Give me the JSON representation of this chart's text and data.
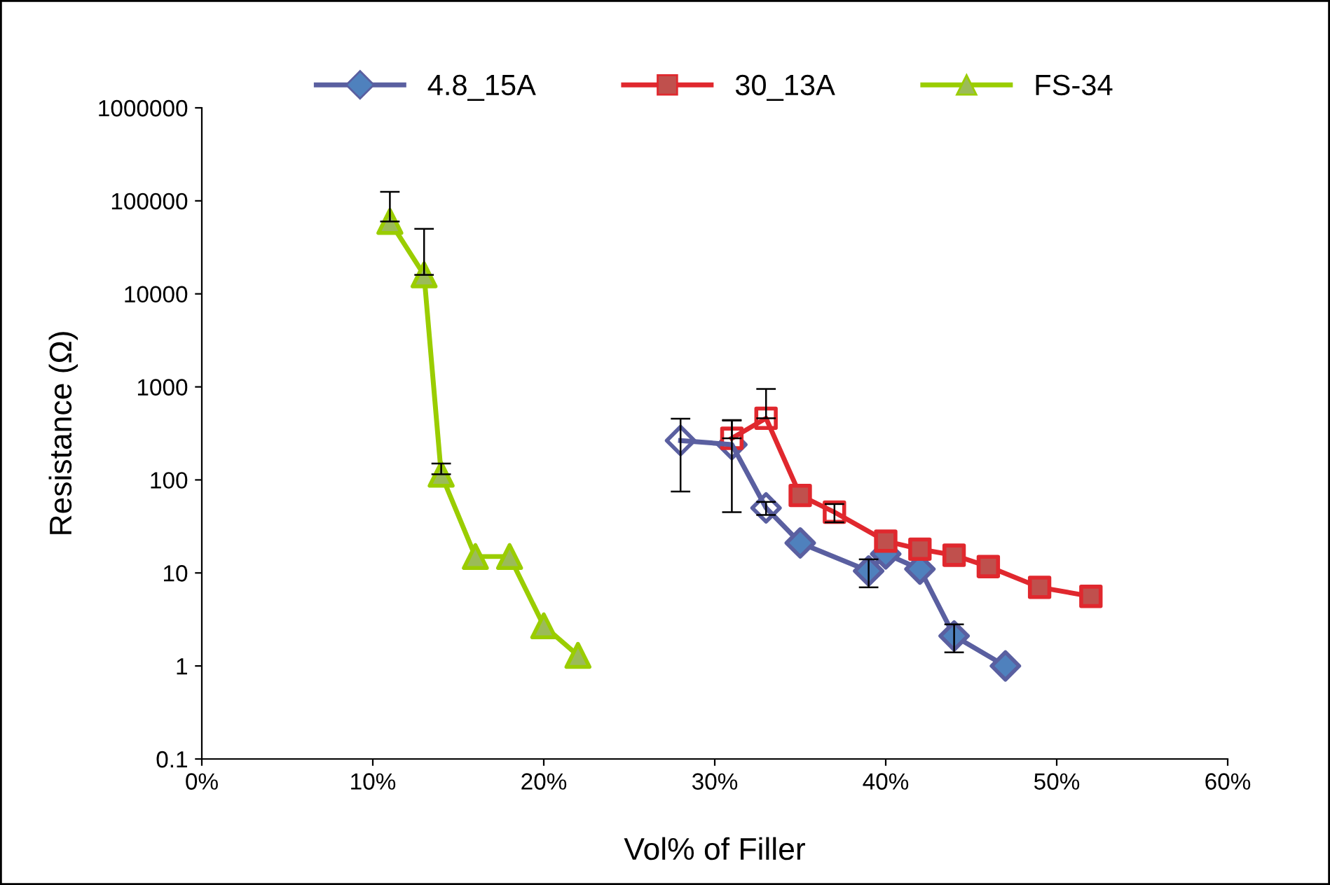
{
  "chart_data": {
    "type": "line",
    "xlabel": "Vol% of Filler",
    "ylabel": "Resistance (Ω)",
    "log": "y",
    "legend": "top",
    "grid": false,
    "xlim": [
      0,
      60
    ],
    "xticks": [
      {
        "value": 0,
        "label": "0%"
      },
      {
        "value": 10,
        "label": "10%"
      },
      {
        "value": 20,
        "label": "20%"
      },
      {
        "value": 30,
        "label": "30%"
      },
      {
        "value": 40,
        "label": "40%"
      },
      {
        "value": 50,
        "label": "50%"
      },
      {
        "value": 60,
        "label": "60%"
      }
    ],
    "ylim": [
      0.1,
      1000000
    ],
    "yticks": [
      {
        "value": 0.1,
        "label": "0.1"
      },
      1,
      10,
      100,
      1000,
      10000,
      100000,
      1000000
    ],
    "series": [
      {
        "name": "4.8_15A",
        "color": "#5a5fa0",
        "marker": "diamond",
        "x": [
          28,
          31,
          33,
          35,
          39,
          40,
          42,
          44,
          47
        ],
        "values": [
          265,
          240,
          50,
          21,
          10.5,
          16,
          11,
          2.1,
          1
        ],
        "colors": [
          "#ffffff",
          "#ffffff",
          "#ffffff",
          "#4f81bd",
          "#4f81bd",
          "#4f81bd",
          "#4f81bd",
          "#4f81bd",
          "#4f81bd"
        ],
        "errors": [
          190,
          195,
          8,
          null,
          3.5,
          null,
          null,
          0.7,
          null
        ]
      },
      {
        "name": "30_13A",
        "color": "#e0282e",
        "marker": "square",
        "x": [
          31,
          33,
          35,
          37,
          40,
          42,
          44,
          46,
          49,
          52
        ],
        "values": [
          280,
          460,
          68,
          45,
          22,
          18,
          15.5,
          11.7,
          7,
          5.6
        ],
        "colors": [
          "#ffffff",
          "#ffffff",
          "#c0504d",
          "#ffffff",
          "#c0504d",
          "#c0504d",
          "#c0504d",
          "#c0504d",
          "#c0504d",
          "#c0504d"
        ],
        "errors": [
          [
            280,
            440
          ],
          [
            460,
            950
          ],
          null,
          10,
          null,
          null,
          null,
          null,
          null,
          null
        ]
      },
      {
        "name": "FS-34",
        "color": "#9acd00",
        "marker": "triangle",
        "x": [
          11,
          13,
          14,
          16,
          18,
          20,
          22
        ],
        "values": [
          60000,
          16000,
          115,
          15,
          15,
          2.7,
          1.3
        ],
        "colors": [
          "#9bbb59",
          "#9bbb59",
          "#9bbb59",
          "#9bbb59",
          "#9bbb59",
          "#9bbb59",
          "#9bbb59"
        ],
        "errors": [
          [
            60000,
            125000
          ],
          [
            16000,
            50000
          ],
          [
            115,
            150
          ],
          null,
          null,
          null,
          null
        ]
      }
    ]
  }
}
